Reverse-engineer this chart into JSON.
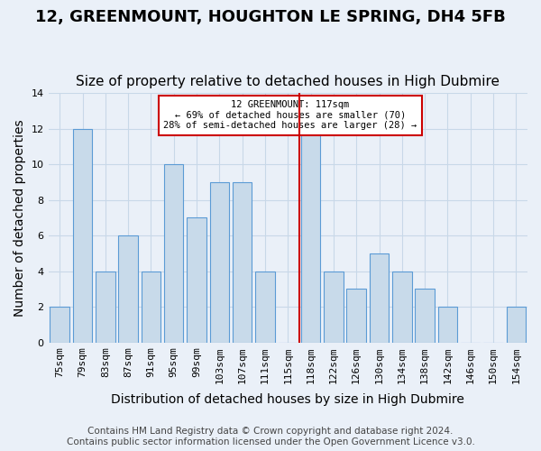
{
  "title": "12, GREENMOUNT, HOUGHTON LE SPRING, DH4 5FB",
  "subtitle": "Size of property relative to detached houses in High Dubmire",
  "xlabel": "Distribution of detached houses by size in High Dubmire",
  "ylabel": "Number of detached properties",
  "bar_labels": [
    "75sqm",
    "79sqm",
    "83sqm",
    "87sqm",
    "91sqm",
    "95sqm",
    "99sqm",
    "103sqm",
    "107sqm",
    "111sqm",
    "115sqm",
    "118sqm",
    "122sqm",
    "126sqm",
    "130sqm",
    "134sqm",
    "138sqm",
    "142sqm",
    "146sqm",
    "150sqm",
    "154sqm"
  ],
  "bar_values": [
    2,
    12,
    4,
    6,
    4,
    10,
    7,
    9,
    9,
    4,
    0,
    12,
    4,
    3,
    5,
    4,
    3,
    2,
    0,
    0,
    2
  ],
  "bar_color": "#c8daea",
  "bar_edge_color": "#5b9bd5",
  "grid_color": "#c8d8e8",
  "background_color": "#eaf0f8",
  "property_line_x": 10.5,
  "annotation_line1": "12 GREENMOUNT: 117sqm",
  "annotation_line2": "← 69% of detached houses are smaller (70)",
  "annotation_line3": "28% of semi-detached houses are larger (28) →",
  "annotation_box_color": "#ffffff",
  "annotation_edge_color": "#cc0000",
  "vline_color": "#cc0000",
  "footer": "Contains HM Land Registry data © Crown copyright and database right 2024.\nContains public sector information licensed under the Open Government Licence v3.0.",
  "ylim": [
    0,
    14
  ],
  "yticks": [
    0,
    2,
    4,
    6,
    8,
    10,
    12,
    14
  ],
  "title_fontsize": 13,
  "subtitle_fontsize": 11,
  "xlabel_fontsize": 10,
  "ylabel_fontsize": 10,
  "tick_fontsize": 8,
  "footer_fontsize": 7.5
}
